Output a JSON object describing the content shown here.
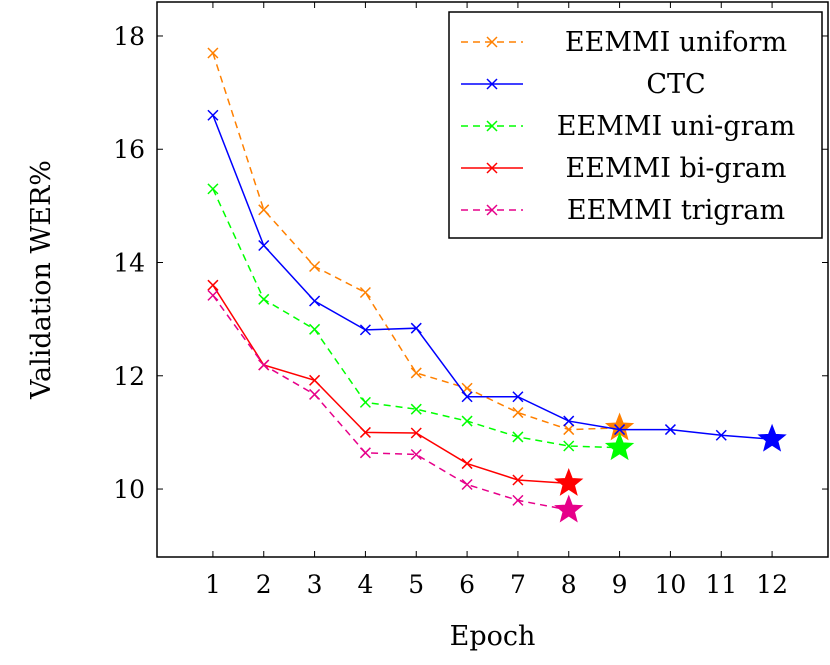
{
  "chart_data": {
    "type": "line",
    "title": "",
    "xlabel": "Epoch",
    "ylabel": "Validation WER%",
    "x_ticks": [
      1,
      2,
      3,
      4,
      5,
      6,
      7,
      8,
      9,
      10,
      11,
      12
    ],
    "y_ticks": [
      10,
      12,
      14,
      16,
      18
    ],
    "xlim": [
      -0.1,
      13.1
    ],
    "ylim": [
      8.8,
      18.6
    ],
    "grid": false,
    "legend_position": "top-right",
    "series": [
      {
        "name": "EEMMI uniform",
        "color": "#ff8000",
        "dashed": true,
        "x": [
          1,
          2,
          3,
          4,
          5,
          6,
          7,
          8,
          9
        ],
        "y": [
          17.7,
          14.93,
          13.93,
          13.47,
          12.05,
          11.78,
          11.35,
          11.05,
          11.08
        ],
        "final_marker": "star"
      },
      {
        "name": "CTC",
        "color": "#0000ff",
        "dashed": false,
        "x": [
          1,
          2,
          3,
          4,
          5,
          6,
          7,
          8,
          9,
          10,
          11,
          12
        ],
        "y": [
          16.6,
          14.3,
          13.32,
          12.81,
          12.84,
          11.63,
          11.63,
          11.2,
          11.05,
          11.05,
          10.95,
          10.88
        ],
        "final_marker": "star"
      },
      {
        "name": "EEMMI uni-gram",
        "color": "#00ff00",
        "dashed": true,
        "x": [
          1,
          2,
          3,
          4,
          5,
          6,
          7,
          8,
          9
        ],
        "y": [
          15.3,
          13.35,
          12.82,
          11.53,
          11.41,
          11.2,
          10.92,
          10.76,
          10.73
        ],
        "final_marker": "star"
      },
      {
        "name": "EEMMI bi-gram",
        "color": "#ff0000",
        "dashed": false,
        "x": [
          1,
          2,
          3,
          4,
          5,
          6,
          7,
          8
        ],
        "y": [
          13.6,
          12.19,
          11.92,
          11.0,
          10.99,
          10.45,
          10.16,
          10.1
        ],
        "final_marker": "star"
      },
      {
        "name": "EEMMI trigram",
        "color": "#e6008a",
        "dashed": true,
        "x": [
          1,
          2,
          3,
          4,
          5,
          6,
          7,
          8
        ],
        "y": [
          13.42,
          12.19,
          11.67,
          10.64,
          10.61,
          10.08,
          9.8,
          9.63
        ],
        "final_marker": "star"
      }
    ]
  }
}
